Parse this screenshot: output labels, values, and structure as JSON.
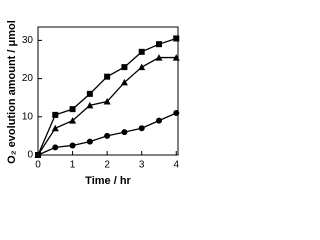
{
  "chart_data": {
    "type": "line",
    "x_label": "Time / hr",
    "y_label": "O₂ evolution amount / μmol",
    "x": [
      0,
      0.5,
      1,
      1.5,
      2,
      2.5,
      3,
      3.5,
      4
    ],
    "series": [
      {
        "marker": "square",
        "color": "#000000",
        "values": [
          0,
          10.5,
          12,
          16,
          20.5,
          23,
          27,
          29,
          30.5
        ]
      },
      {
        "marker": "triangle",
        "color": "#000000",
        "values": [
          0,
          7,
          9,
          13,
          14,
          19,
          23,
          25.5,
          25.5
        ]
      },
      {
        "marker": "circle",
        "color": "#000000",
        "values": [
          0,
          2,
          2.5,
          3.5,
          5,
          6,
          7,
          9,
          11
        ]
      }
    ],
    "xlim": [
      0,
      4.05
    ],
    "xticks": [
      0,
      1,
      2,
      3,
      4
    ],
    "ylim": [
      0,
      33.5
    ],
    "yticks": [
      0,
      10,
      20,
      30
    ]
  }
}
